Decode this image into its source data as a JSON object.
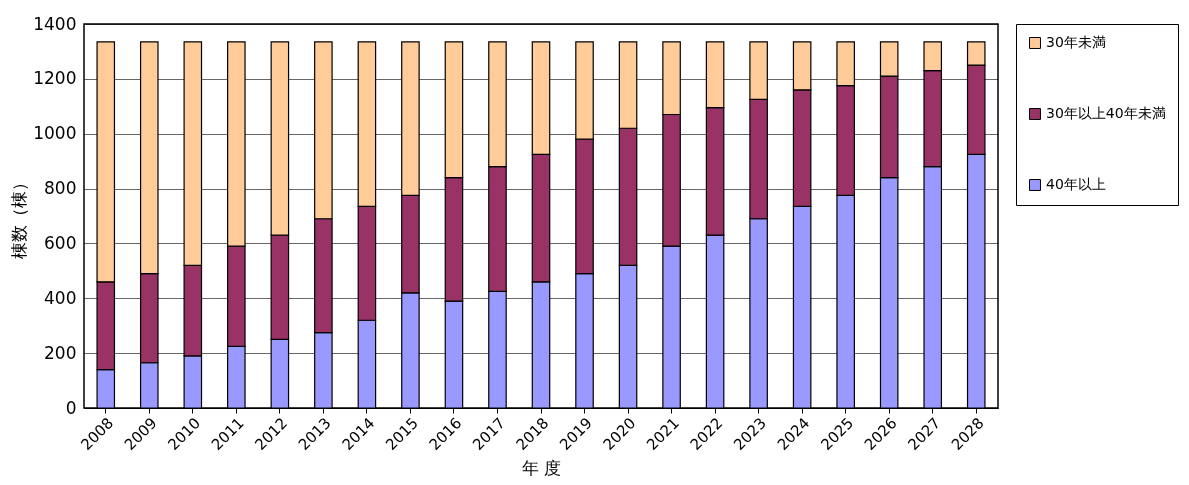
{
  "chart_data": {
    "type": "bar",
    "stacked": true,
    "xlabel": "年 度",
    "ylabel": "棟数（棟）",
    "categories": [
      "2008",
      "2009",
      "2010",
      "2011",
      "2012",
      "2013",
      "2014",
      "2015",
      "2016",
      "2017",
      "2018",
      "2019",
      "2020",
      "2021",
      "2022",
      "2023",
      "2024",
      "2025",
      "2026",
      "2027",
      "2028"
    ],
    "series": [
      {
        "name": "40年以上",
        "color": "#9999ff",
        "values": [
          140,
          165,
          190,
          225,
          250,
          275,
          320,
          420,
          390,
          425,
          460,
          490,
          520,
          590,
          630,
          690,
          735,
          775,
          840,
          880,
          925
        ]
      },
      {
        "name": "30年以上40年未満",
        "color": "#993366",
        "values": [
          320,
          325,
          330,
          365,
          380,
          415,
          415,
          355,
          450,
          455,
          465,
          490,
          500,
          480,
          465,
          435,
          425,
          400,
          370,
          350,
          325
        ]
      },
      {
        "name": "30年未満",
        "color": "#ffcc99",
        "values": [
          875,
          845,
          815,
          745,
          705,
          645,
          600,
          560,
          495,
          455,
          410,
          355,
          315,
          265,
          240,
          210,
          175,
          160,
          125,
          105,
          85
        ]
      }
    ],
    "ylim": [
      0,
      1400
    ],
    "yticks": [
      0,
      200,
      400,
      600,
      800,
      1000,
      1200,
      1400
    ],
    "grid": "y",
    "legend": "right"
  }
}
